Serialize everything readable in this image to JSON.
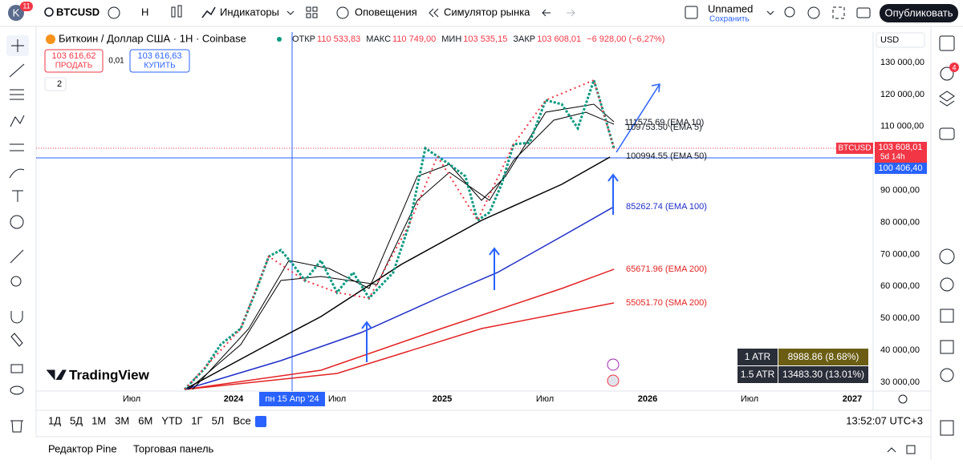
{
  "toolbar": {
    "avatar": "K",
    "badge": "11",
    "symbol": "BTCUSD",
    "interval": "H",
    "indicators": "Индикаторы",
    "alerts": "Оповещения",
    "replay": "Симулятор рынка",
    "layout_name": "Unnamed",
    "save": "Сохранить",
    "publish": "Опубликовать"
  },
  "legend": {
    "title": "Биткоин / Доллар США · 1H · Coinbase",
    "open_label": "ОТКР",
    "open": "110 533,83",
    "high_label": "МАКС",
    "high": "110 749,00",
    "low_label": "МИН",
    "low": "103 535,15",
    "close_label": "ЗАКР",
    "close": "103 608,01",
    "change": "−6 928,00 (−6,27%)"
  },
  "trade": {
    "sell_price": "103 616,62",
    "sell": "ПРОДАТЬ",
    "spread": "0,01",
    "buy_price": "103 616,63",
    "buy": "КУПИТЬ",
    "collapsed": "2"
  },
  "currency": "USD",
  "price_axis": [
    "130 000,00",
    "120 000,00",
    "110 000,00",
    "100 000,00",
    "90 000,00",
    "80 000,00",
    "70 000,00",
    "60 000,00",
    "50 000,00",
    "40 000,00",
    "30 000,00"
  ],
  "price_tags": {
    "symbol": "BTCUSD",
    "last": "103 608,01",
    "countdown": "5d 14h",
    "crosshair": "100 406,40"
  },
  "indicator_labels": [
    "111575.69 (EMA 10)",
    "109753.50 (EMA 5)",
    "100994.55 (EMA 50)",
    "85262.74 (EMA 100)",
    "65671.96 (EMA 200)",
    "55051.70 (SMA 200)"
  ],
  "atr": {
    "rows": [
      [
        "1 ATR",
        "8988.86 (8.68%)"
      ],
      [
        "1.5 ATR",
        "13483.30 (13.01%)"
      ]
    ]
  },
  "time_axis": [
    "Июл",
    "2024",
    "Июл",
    "2025",
    "Июл",
    "2026",
    "Июл",
    "2027"
  ],
  "crosshair_date": "пн 15 Апр '24",
  "logo": "TradingView",
  "ranges": [
    "1Д",
    "5Д",
    "1М",
    "3М",
    "6М",
    "YTD",
    "1Г",
    "5Л",
    "Все"
  ],
  "clock": "13:52:07 UTC+3",
  "bottom_tabs": [
    "Редактор Pine",
    "Торговая панель"
  ],
  "right_badge": "4"
}
